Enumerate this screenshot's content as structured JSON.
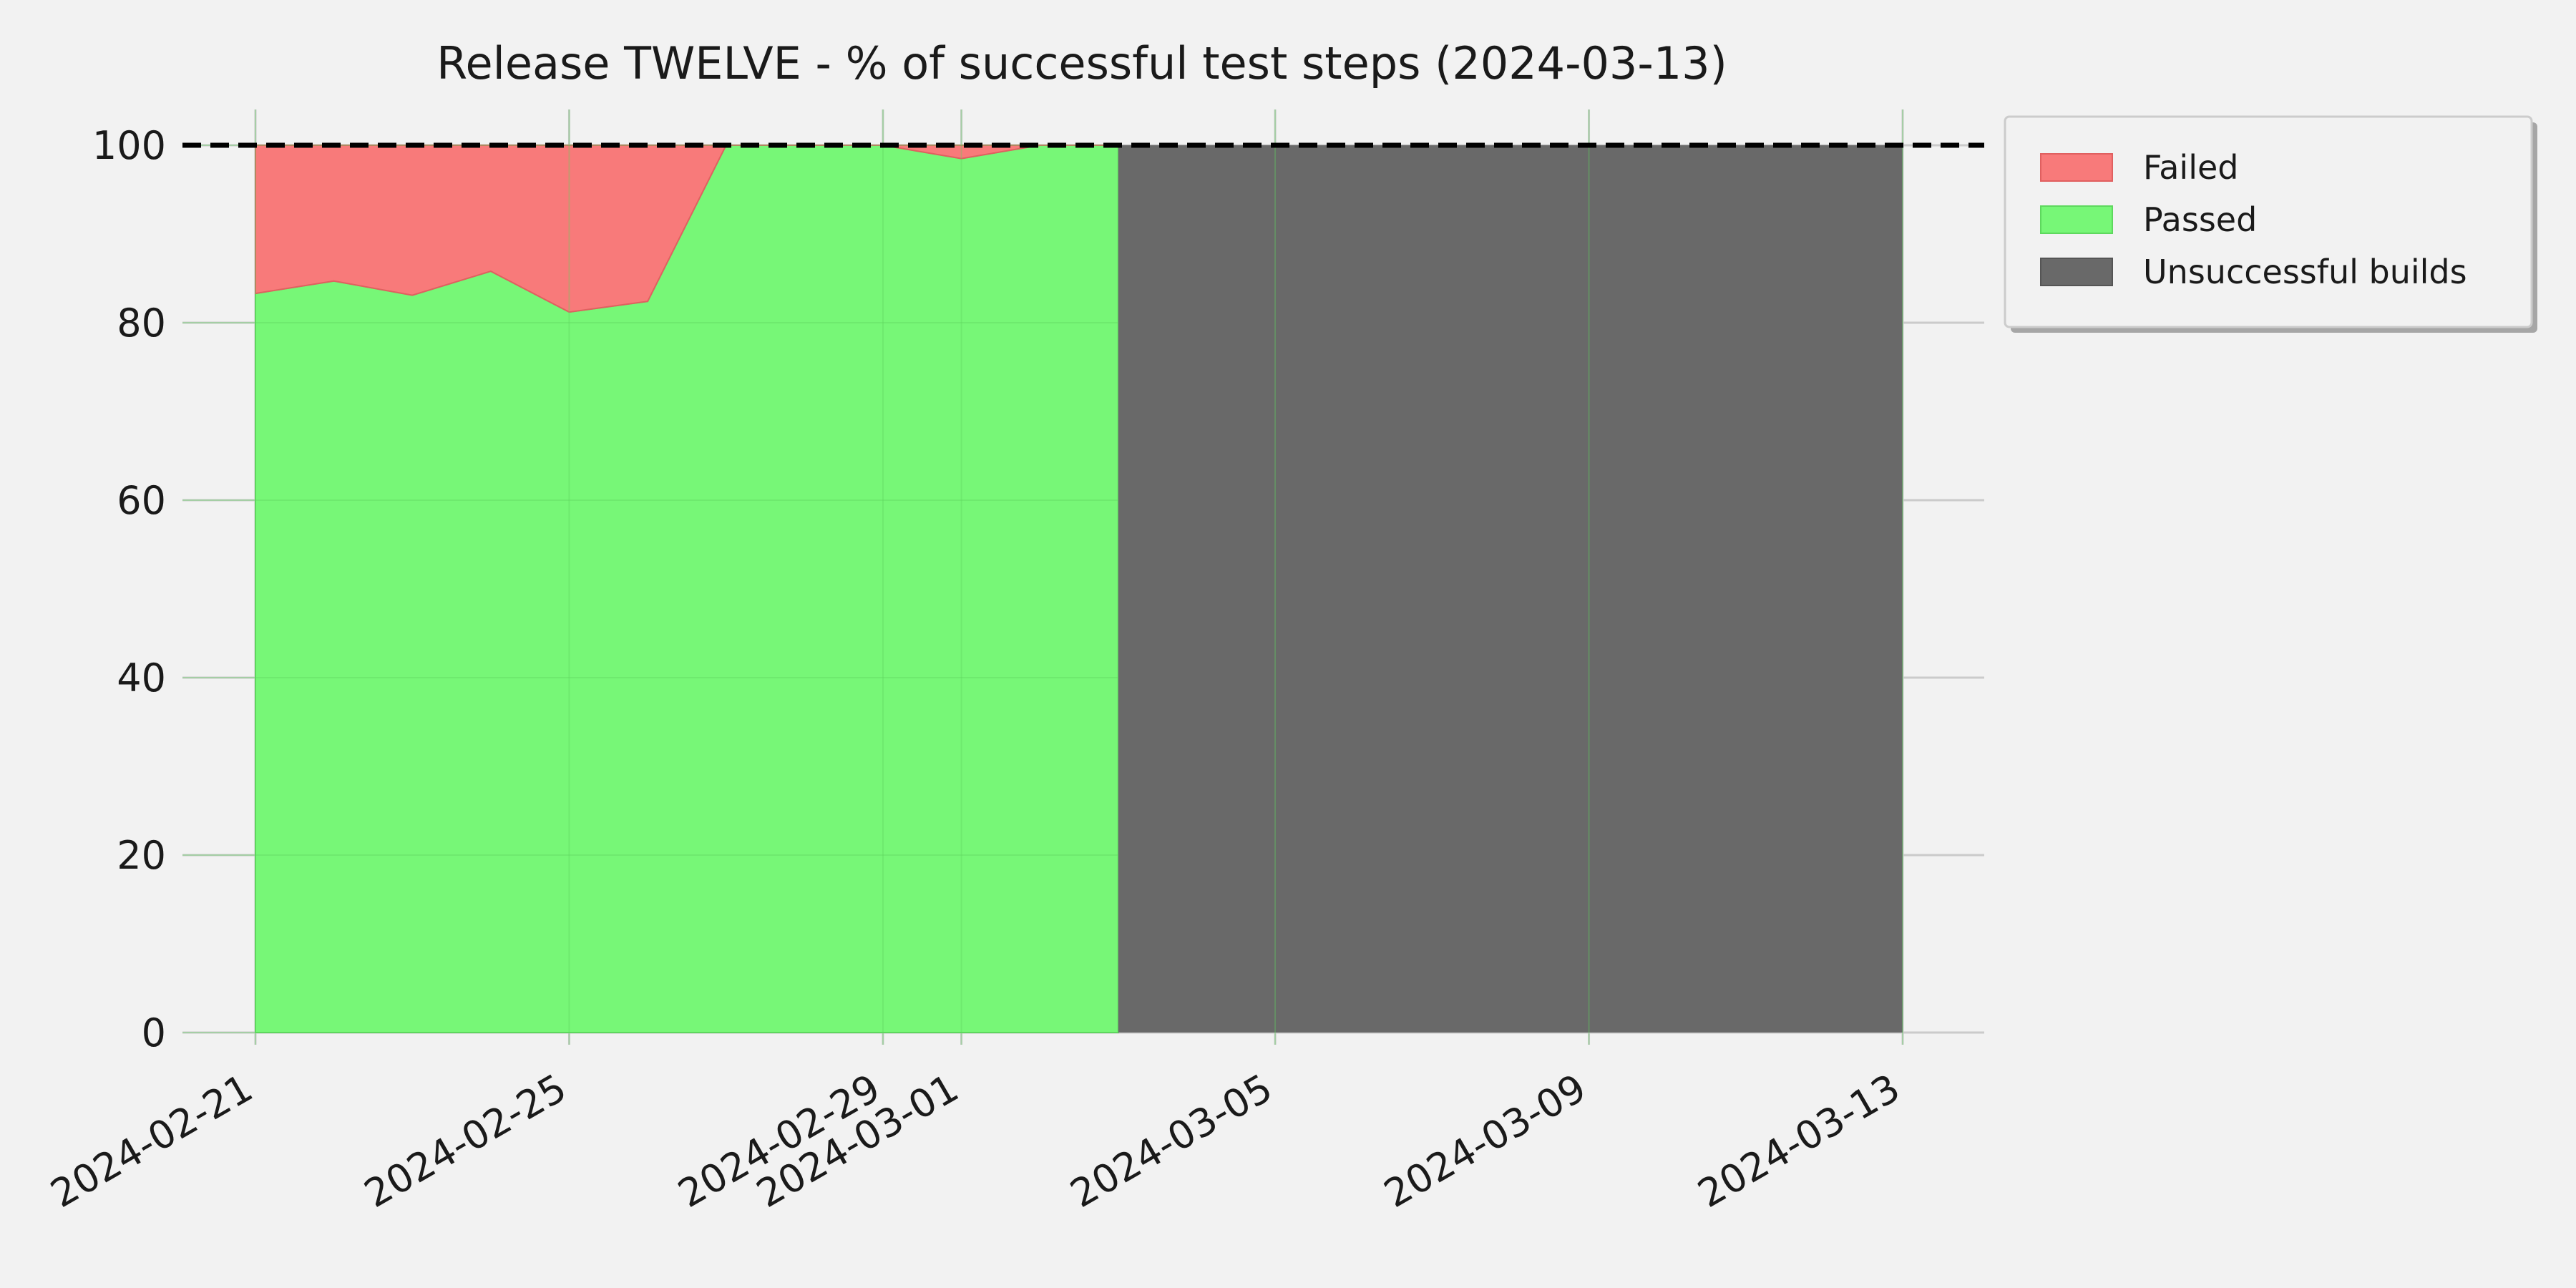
{
  "chart_data": {
    "type": "area",
    "title": "Release TWELVE - % of successful test steps (2024-03-13)",
    "xlabel": "",
    "ylabel": "",
    "x_axis": "date",
    "xlim": [
      "2024-02-21",
      "2024-03-13"
    ],
    "ylim": [
      0,
      100
    ],
    "yticks": [
      0,
      20,
      40,
      60,
      80,
      100
    ],
    "xticks": [
      "2024-02-21",
      "2024-02-25",
      "2024-02-29",
      "2024-03-01",
      "2024-03-05",
      "2024-03-09",
      "2024-03-13"
    ],
    "grid": true,
    "legend_position": "outside-top-right",
    "reference_line": {
      "y": 100,
      "style": "dashed",
      "color": "#000000"
    },
    "series": [
      {
        "name": "Failed",
        "color": "#f87a7a",
        "x": [
          "2024-02-21",
          "2024-02-22",
          "2024-02-23",
          "2024-02-24",
          "2024-02-25",
          "2024-02-26",
          "2024-02-27",
          "2024-02-28",
          "2024-02-29",
          "2024-03-01",
          "2024-03-02",
          "2024-03-03"
        ],
        "values": [
          16.7,
          15.3,
          16.9,
          14.2,
          18.8,
          17.6,
          0,
          0,
          0,
          1.5,
          0,
          0
        ]
      },
      {
        "name": "Passed",
        "color": "#77f777",
        "x": [
          "2024-02-21",
          "2024-02-22",
          "2024-02-23",
          "2024-02-24",
          "2024-02-25",
          "2024-02-26",
          "2024-02-27",
          "2024-02-28",
          "2024-02-29",
          "2024-03-01",
          "2024-03-02",
          "2024-03-03"
        ],
        "values": [
          83.3,
          84.7,
          83.1,
          85.8,
          81.2,
          82.4,
          100,
          100,
          100,
          98.5,
          100,
          100
        ]
      },
      {
        "name": "Unsuccessful builds",
        "color": "#696969",
        "x": [
          "2024-03-03",
          "2024-03-13"
        ],
        "values": [
          100,
          100
        ]
      }
    ]
  }
}
